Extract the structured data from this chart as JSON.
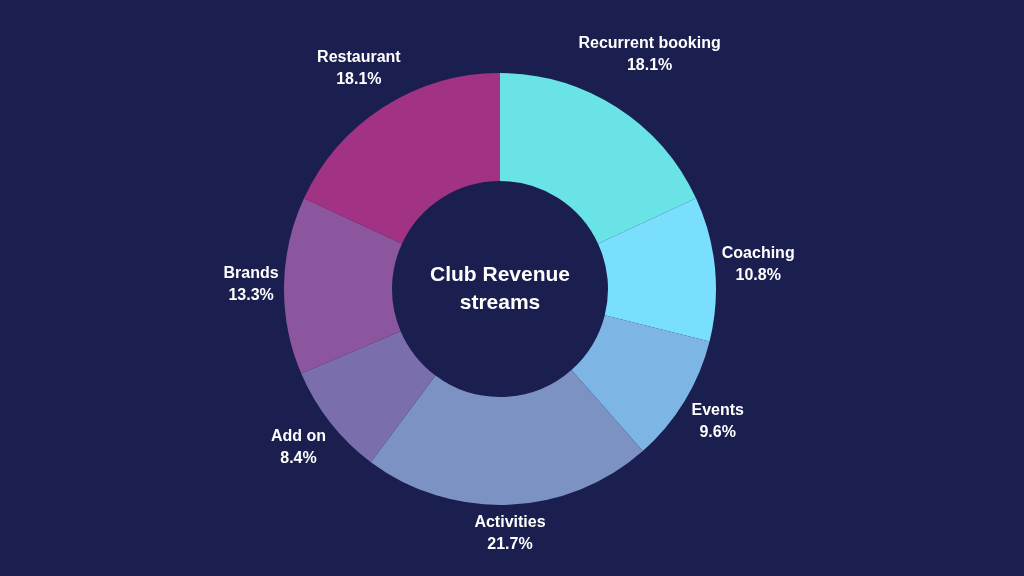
{
  "chart_data": {
    "type": "donut",
    "title": "Club Revenue streams",
    "categories": [
      "Recurrent booking",
      "Coaching",
      "Events",
      "Activities",
      "Add on",
      "Brands",
      "Restaurant"
    ],
    "values": [
      18.1,
      10.8,
      9.6,
      21.7,
      8.4,
      13.3,
      18.1
    ],
    "colors": [
      "#69e3e6",
      "#7adffd",
      "#7db6e5",
      "#7b92c3",
      "#7a6fac",
      "#8c569f",
      "#a23384"
    ],
    "value_labels": [
      "18.1%",
      "10.8%",
      "9.6%",
      "21.7%",
      "8.4%",
      "13.3%",
      "18.1%"
    ]
  }
}
